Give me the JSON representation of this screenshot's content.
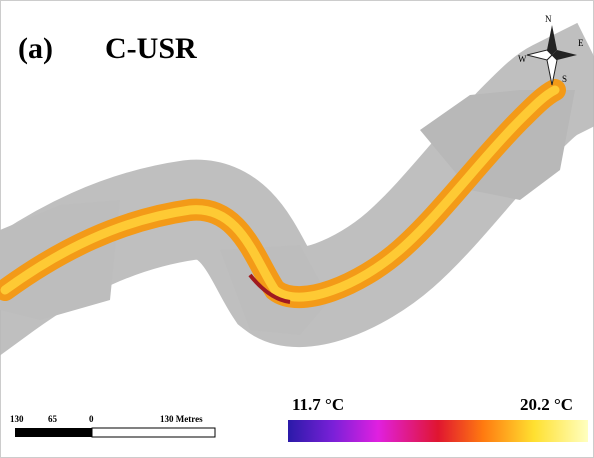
{
  "map": {
    "panel_label": "(a)",
    "title": "C-USR",
    "compass": {
      "n": "N",
      "e": "E",
      "s": "S",
      "w": "W"
    },
    "scale_bar": {
      "labels": [
        "130",
        "65",
        "0",
        "130 Metres"
      ]
    },
    "colorbar": {
      "min_label": "11.7 °C",
      "max_label": "20.2 °C"
    }
  }
}
